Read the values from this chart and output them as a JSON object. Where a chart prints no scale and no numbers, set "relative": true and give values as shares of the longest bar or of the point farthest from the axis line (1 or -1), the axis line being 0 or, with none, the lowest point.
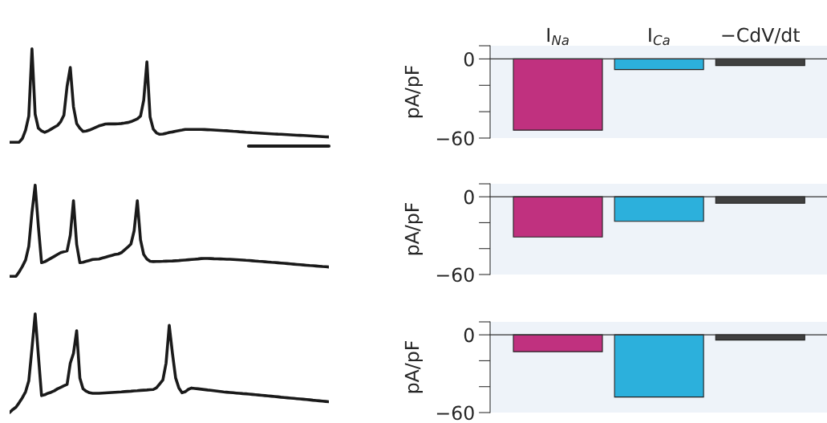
{
  "chart_data": [
    {
      "type": "line",
      "relative": true,
      "tick_labels": false,
      "categories": [
        null,
        null,
        null,
        null,
        null,
        null,
        null,
        null,
        null,
        null,
        null,
        null,
        null,
        null,
        null,
        null,
        null,
        null,
        null,
        null,
        null,
        null,
        null,
        null,
        null,
        null,
        null,
        null,
        null,
        null,
        null,
        null,
        null,
        null,
        null,
        null,
        null,
        null,
        null,
        null,
        null,
        null,
        null,
        null,
        null,
        null,
        null,
        null,
        null,
        null,
        null,
        null,
        null,
        null,
        null,
        null,
        null,
        null,
        null,
        null,
        null,
        null,
        null,
        null,
        null,
        null,
        null,
        null,
        null,
        null,
        null,
        null,
        null,
        null,
        null,
        null,
        null,
        null,
        null,
        null,
        null,
        null,
        null,
        null,
        null,
        null,
        null,
        null,
        null,
        null,
        null,
        null,
        null,
        null,
        null,
        null,
        null,
        null,
        null,
        null,
        null
      ],
      "series": [
        {
          "color": "#1a1a1a",
          "values": [
            0,
            0,
            0,
            0,
            0.04,
            0.13,
            0.28,
            1,
            0.3,
            0.15,
            0.12,
            0.105,
            0.12,
            0.14,
            0.16,
            0.18,
            0.22,
            0.29,
            0.6,
            0.8,
            0.38,
            0.2,
            0.15,
            0.115,
            0.12,
            0.13,
            0.145,
            0.16,
            0.175,
            0.185,
            0.195,
            0.196,
            0.196,
            0.196,
            0.197,
            0.2,
            0.205,
            0.211,
            0.22,
            0.235,
            0.25,
            0.28,
            0.45,
            0.86,
            0.27,
            0.14,
            0.1,
            0.085,
            0.088,
            0.095,
            0.105,
            0.11,
            0.118,
            0.124,
            0.13,
            0.137,
            0.137,
            0.137,
            0.137,
            0.137,
            0.137,
            0.136,
            0.134,
            0.132,
            0.13,
            0.128,
            0.126,
            0.124,
            0.123,
            0.12,
            0.117,
            0.115,
            0.112,
            0.11,
            0.107,
            0.105,
            0.102,
            0.1,
            0.098,
            0.096,
            0.094,
            0.092,
            0.09,
            0.088,
            0.086,
            0.085,
            0.083,
            0.081,
            0.079,
            0.077,
            0.075,
            0.074,
            0.072,
            0.07,
            0.068,
            0.066,
            0.064,
            0.062,
            0.06,
            0.058,
            0.056
          ]
        }
      ]
    },
    {
      "type": "bar",
      "categories": [
        "I$_{Na}$",
        "I$_{Ca}$",
        "−CdV/dt"
      ],
      "values": [
        -54,
        -8,
        -5
      ],
      "colors": [
        "#c0317f",
        "#2cb0dc",
        "#404040"
      ],
      "ylabel": "pA/pF",
      "ylim": [
        -60,
        10
      ],
      "yticks": [
        {
          "value": -60,
          "label": "−60"
        },
        {
          "value": -40,
          "label": null
        },
        {
          "value": -20,
          "label": null
        },
        0,
        {
          "value": 10,
          "label": null
        }
      ]
    },
    {
      "type": "line",
      "relative": true,
      "tick_labels": false,
      "categories": [
        null,
        null,
        null,
        null,
        null,
        null,
        null,
        null,
        null,
        null,
        null,
        null,
        null,
        null,
        null,
        null,
        null,
        null,
        null,
        null,
        null,
        null,
        null,
        null,
        null,
        null,
        null,
        null,
        null,
        null,
        null,
        null,
        null,
        null,
        null,
        null,
        null,
        null,
        null,
        null,
        null,
        null,
        null,
        null,
        null,
        null,
        null,
        null,
        null,
        null,
        null,
        null,
        null,
        null,
        null,
        null,
        null,
        null,
        null,
        null,
        null,
        null,
        null,
        null,
        null,
        null,
        null,
        null,
        null,
        null,
        null,
        null,
        null,
        null,
        null,
        null,
        null,
        null,
        null,
        null,
        null,
        null,
        null,
        null,
        null,
        null,
        null,
        null,
        null,
        null,
        null,
        null,
        null,
        null,
        null,
        null,
        null,
        null,
        null,
        null,
        null
      ],
      "series": [
        {
          "color": "#1a1a1a",
          "values": [
            0,
            0,
            0,
            0.05,
            0.11,
            0.18,
            0.33,
            0.7,
            1,
            0.55,
            0.15,
            0.16,
            0.18,
            0.2,
            0.22,
            0.24,
            0.26,
            0.27,
            0.28,
            0.45,
            0.829,
            0.35,
            0.15,
            0.155,
            0.165,
            0.175,
            0.185,
            0.188,
            0.19,
            0.2,
            0.21,
            0.22,
            0.23,
            0.24,
            0.245,
            0.26,
            0.29,
            0.32,
            0.355,
            0.5,
            0.829,
            0.4,
            0.24,
            0.19,
            0.165,
            0.162,
            0.163,
            0.164,
            0.165,
            0.167,
            0.168,
            0.169,
            0.171,
            0.173,
            0.176,
            0.179,
            0.182,
            0.185,
            0.188,
            0.191,
            0.195,
            0.197,
            0.196,
            0.195,
            0.193,
            0.192,
            0.191,
            0.19,
            0.188,
            0.187,
            0.185,
            0.183,
            0.181,
            0.179,
            0.176,
            0.174,
            0.171,
            0.168,
            0.165,
            0.163,
            0.16,
            0.157,
            0.154,
            0.152,
            0.149,
            0.146,
            0.143,
            0.14,
            0.137,
            0.134,
            0.131,
            0.128,
            0.125,
            0.122,
            0.119,
            0.117,
            0.114,
            0.111,
            0.108,
            0.106,
            0.103
          ]
        }
      ]
    },
    {
      "type": "bar",
      "categories": [
        null,
        null,
        null
      ],
      "values": [
        -31,
        -19,
        -5
      ],
      "colors": [
        "#c0317f",
        "#2cb0dc",
        "#404040"
      ],
      "ylabel": "pA/pF",
      "ylim": [
        -60,
        10
      ],
      "yticks": [
        {
          "value": -60,
          "label": "−60"
        },
        {
          "value": -40,
          "label": null
        },
        {
          "value": -20,
          "label": null
        },
        0,
        {
          "value": 10,
          "label": null
        }
      ]
    },
    {
      "type": "line",
      "relative": true,
      "tick_labels": false,
      "categories": [
        null,
        null,
        null,
        null,
        null,
        null,
        null,
        null,
        null,
        null,
        null,
        null,
        null,
        null,
        null,
        null,
        null,
        null,
        null,
        null,
        null,
        null,
        null,
        null,
        null,
        null,
        null,
        null,
        null,
        null,
        null,
        null,
        null,
        null,
        null,
        null,
        null,
        null,
        null,
        null,
        null,
        null,
        null,
        null,
        null,
        null,
        null,
        null,
        null,
        null,
        null,
        null,
        null,
        null,
        null,
        null,
        null,
        null,
        null,
        null,
        null,
        null,
        null,
        null,
        null,
        null,
        null,
        null,
        null,
        null,
        null,
        null,
        null,
        null,
        null,
        null,
        null,
        null,
        null,
        null,
        null,
        null,
        null,
        null,
        null,
        null,
        null,
        null,
        null,
        null,
        null,
        null,
        null,
        null,
        null,
        null,
        null,
        null,
        null,
        null,
        null
      ],
      "series": [
        {
          "color": "#1a1a1a",
          "values": [
            0,
            0.03,
            0.054,
            0.1,
            0.15,
            0.21,
            0.32,
            0.65,
            1,
            0.58,
            0.171,
            0.18,
            0.195,
            0.205,
            0.22,
            0.24,
            0.255,
            0.27,
            0.285,
            0.5,
            0.6,
            0.829,
            0.35,
            0.24,
            0.215,
            0.2,
            0.195,
            0.194,
            0.195,
            0.197,
            0.199,
            0.201,
            0.203,
            0.205,
            0.207,
            0.209,
            0.212,
            0.214,
            0.216,
            0.219,
            0.221,
            0.224,
            0.226,
            0.228,
            0.231,
            0.233,
            0.25,
            0.29,
            0.33,
            0.5,
            0.884,
            0.6,
            0.35,
            0.25,
            0.2,
            0.21,
            0.235,
            0.248,
            0.244,
            0.24,
            0.236,
            0.232,
            0.228,
            0.225,
            0.221,
            0.217,
            0.213,
            0.209,
            0.206,
            0.203,
            0.2,
            0.197,
            0.194,
            0.191,
            0.189,
            0.186,
            0.183,
            0.18,
            0.177,
            0.174,
            0.171,
            0.168,
            0.165,
            0.162,
            0.159,
            0.155,
            0.152,
            0.149,
            0.146,
            0.143,
            0.14,
            0.137,
            0.134,
            0.131,
            0.128,
            0.124,
            0.121,
            0.118,
            0.115,
            0.112,
            0.109
          ]
        }
      ]
    },
    {
      "type": "bar",
      "categories": [
        null,
        null,
        null
      ],
      "values": [
        -13,
        -48,
        -4
      ],
      "colors": [
        "#c0317f",
        "#2cb0dc",
        "#404040"
      ],
      "ylabel": "pA/pF",
      "ylim": [
        -60,
        10
      ],
      "yticks": [
        {
          "value": -60,
          "label": "−60"
        },
        {
          "value": -40,
          "label": null
        },
        {
          "value": -20,
          "label": null
        },
        0,
        {
          "value": 10,
          "label": null
        }
      ]
    }
  ]
}
